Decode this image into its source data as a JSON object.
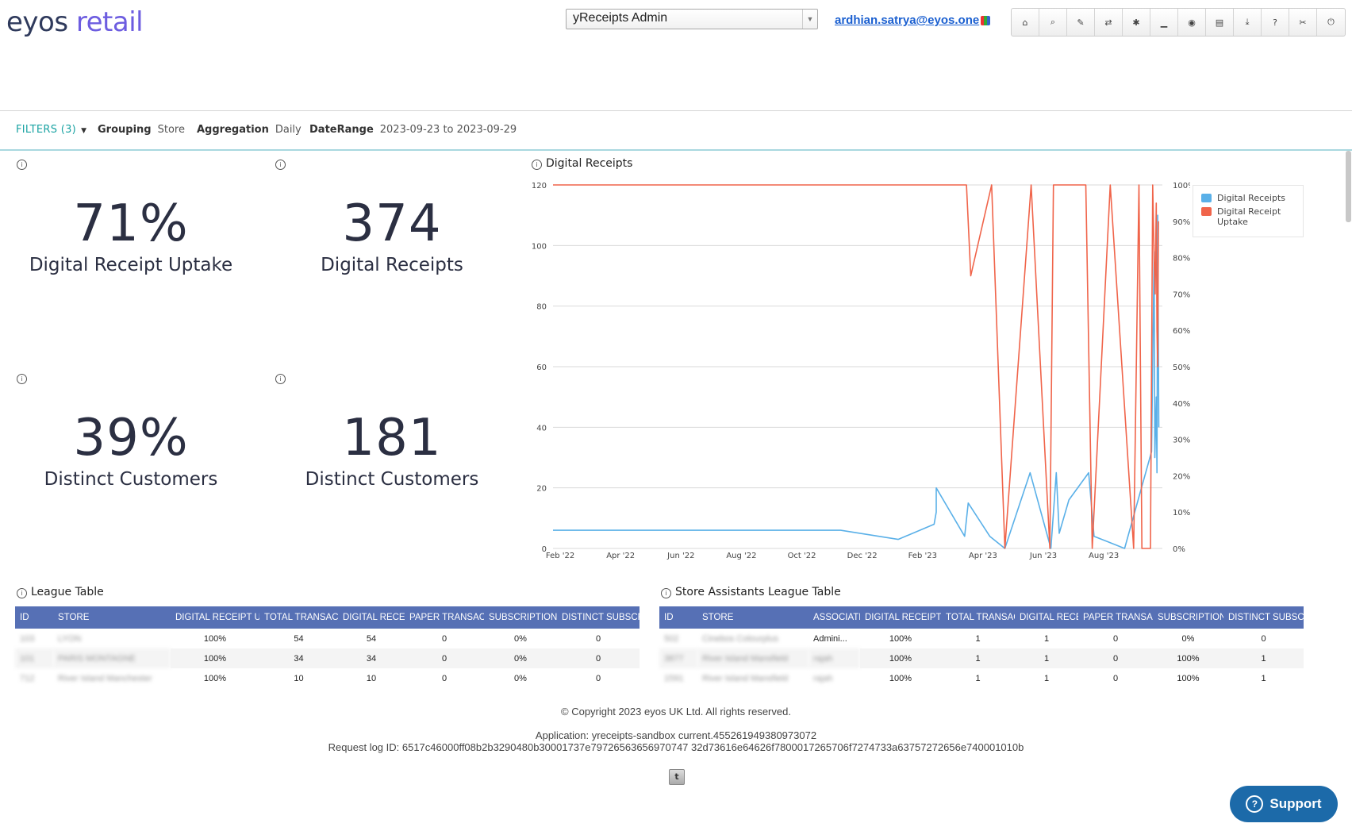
{
  "header": {
    "logo_part1": "eyos",
    "logo_part2": "retail",
    "app_select_value": "yReceipts Admin",
    "user_email": "ardhian.satrya@eyos.one",
    "toolbar_icons": [
      "home-icon",
      "search-icon",
      "wrench-icon",
      "swap-icon",
      "gear-icon",
      "chart-icon",
      "rss-icon",
      "list-icon",
      "download-icon",
      "help-icon",
      "scissors-icon",
      "power-icon"
    ],
    "toolbar_glyphs": [
      "⌂",
      "⌕",
      "✎",
      "⇄",
      "✱",
      "▁",
      "◉",
      "▤",
      "⤓",
      "?",
      "✂",
      "⏻"
    ]
  },
  "filters": {
    "filters_label": "FILTERS (3)",
    "grouping_key": "Grouping",
    "grouping_val": "Store",
    "aggregation_key": "Aggregation",
    "aggregation_val": "Daily",
    "daterange_key": "DateRange",
    "daterange_val": "2023-09-23 to 2023-09-29"
  },
  "kpis": [
    {
      "value": "71%",
      "label": "Digital Receipt Uptake"
    },
    {
      "value": "374",
      "label": "Digital Receipts"
    },
    {
      "value": "39%",
      "label": "Distinct Customers"
    },
    {
      "value": "181",
      "label": "Distinct Customers"
    }
  ],
  "chart_data": {
    "type": "line",
    "title": "Digital Receipts",
    "x_tick_labels": [
      "Feb '22",
      "Apr '22",
      "Jun '22",
      "Aug '22",
      "Oct '22",
      "Dec '22",
      "Feb '23",
      "Apr '23",
      "Jun '23",
      "Aug '23"
    ],
    "y_left_ticks": [
      "0",
      "20",
      "40",
      "60",
      "80",
      "100",
      "120"
    ],
    "y_right_ticks": [
      "0%",
      "10%",
      "20%",
      "30%",
      "40%",
      "50%",
      "60%",
      "70%",
      "80%",
      "90%",
      "100%"
    ],
    "ylim_left": [
      0,
      120
    ],
    "ylim_right": [
      0,
      100
    ],
    "legend_position": "top-right",
    "series": [
      {
        "name": "Digital Receipts",
        "axis": "left",
        "color": "#5ab0e8",
        "points": [
          [
            0.0,
            6
          ],
          [
            0.0,
            6
          ],
          [
            8.0,
            6
          ],
          [
            9.6,
            3
          ],
          [
            10.6,
            8
          ],
          [
            10.66,
            12
          ],
          [
            10.66,
            20
          ],
          [
            11.45,
            4
          ],
          [
            11.55,
            15
          ],
          [
            12.15,
            4
          ],
          [
            12.57,
            0
          ],
          [
            13.27,
            25
          ],
          [
            13.85,
            0
          ],
          [
            14.0,
            25
          ],
          [
            14.08,
            5
          ],
          [
            14.35,
            16
          ],
          [
            14.9,
            25
          ],
          [
            15.05,
            4
          ],
          [
            15.9,
            0
          ],
          [
            16.65,
            32
          ],
          [
            16.72,
            98
          ],
          [
            16.74,
            30
          ],
          [
            16.78,
            50
          ],
          [
            16.8,
            25
          ],
          [
            16.82,
            110
          ],
          [
            16.85,
            40
          ]
        ]
      },
      {
        "name": "Digital Receipt Uptake",
        "axis": "right",
        "color": "#f0644a",
        "points": [
          [
            0.0,
            100
          ],
          [
            10.8,
            100
          ],
          [
            11.5,
            100
          ],
          [
            11.62,
            75
          ],
          [
            12.2,
            100
          ],
          [
            12.57,
            0
          ],
          [
            13.3,
            100
          ],
          [
            13.82,
            0
          ],
          [
            13.92,
            100
          ],
          [
            14.82,
            100
          ],
          [
            15.0,
            0
          ],
          [
            15.5,
            100
          ],
          [
            16.15,
            0
          ],
          [
            16.3,
            100
          ],
          [
            16.38,
            0
          ],
          [
            16.5,
            0
          ],
          [
            16.62,
            0
          ],
          [
            16.68,
            100
          ],
          [
            16.72,
            80
          ],
          [
            16.75,
            70
          ],
          [
            16.78,
            95
          ],
          [
            16.8,
            60
          ],
          [
            16.82,
            50
          ],
          [
            16.84,
            90
          ]
        ]
      }
    ]
  },
  "league_table": {
    "title": "League Table",
    "columns": [
      "ID",
      "STORE",
      "DIGITAL RECEIPT UPTAKE",
      "TOTAL TRANSACTIONS",
      "DIGITAL RECEIPTS",
      "PAPER TRANSACTIONS",
      "SUBSCRIPTION",
      "DISTINCT SUBSCRIBERS"
    ],
    "rows": [
      [
        "103",
        "LYON",
        "100%",
        "54",
        "54",
        "0",
        "0%",
        "0"
      ],
      [
        "101",
        "PARIS MONTAGNE",
        "100%",
        "34",
        "34",
        "0",
        "0%",
        "0"
      ],
      [
        "712",
        "River Island Manchester",
        "100%",
        "10",
        "10",
        "0",
        "0%",
        "0"
      ]
    ]
  },
  "store_assistants_table": {
    "title": "Store Assistants League Table",
    "columns": [
      "ID",
      "STORE",
      "ASSOCIATE",
      "DIGITAL RECEIPT UPTAKE",
      "TOTAL TRANSACTIONS",
      "DIGITAL RECEIPTS",
      "PAPER TRANSACTIONS",
      "SUBSCRIPTION",
      "DISTINCT SUBSCRIBERS"
    ],
    "rows": [
      [
        "502",
        "Cinebos Colourplus",
        "Admini...",
        "100%",
        "1",
        "1",
        "0",
        "0%",
        "0"
      ],
      [
        "3877",
        "River Island Mansfield",
        "rajah",
        "100%",
        "1",
        "1",
        "0",
        "100%",
        "1"
      ],
      [
        "1591",
        "River Island Mansfield",
        "rajah",
        "100%",
        "1",
        "1",
        "0",
        "100%",
        "1"
      ]
    ]
  },
  "footer": {
    "copyright": "© Copyright 2023 eyos UK Ltd. All rights reserved.",
    "application": "Application: yreceipts-sandbox current.455261949380973072",
    "request_log": "Request log ID: 6517c46000ff08b2b3290480b30001737e79726563656970747 32d73616e64626f7800017265706f7274733a63757272656e740001010b"
  },
  "support_label": "Support",
  "colors": {
    "accent": "#1aa3a3",
    "header_blue": "#5670b5",
    "series_blue": "#5ab0e8",
    "series_red": "#f0644a",
    "support": "#1c6aa9"
  }
}
